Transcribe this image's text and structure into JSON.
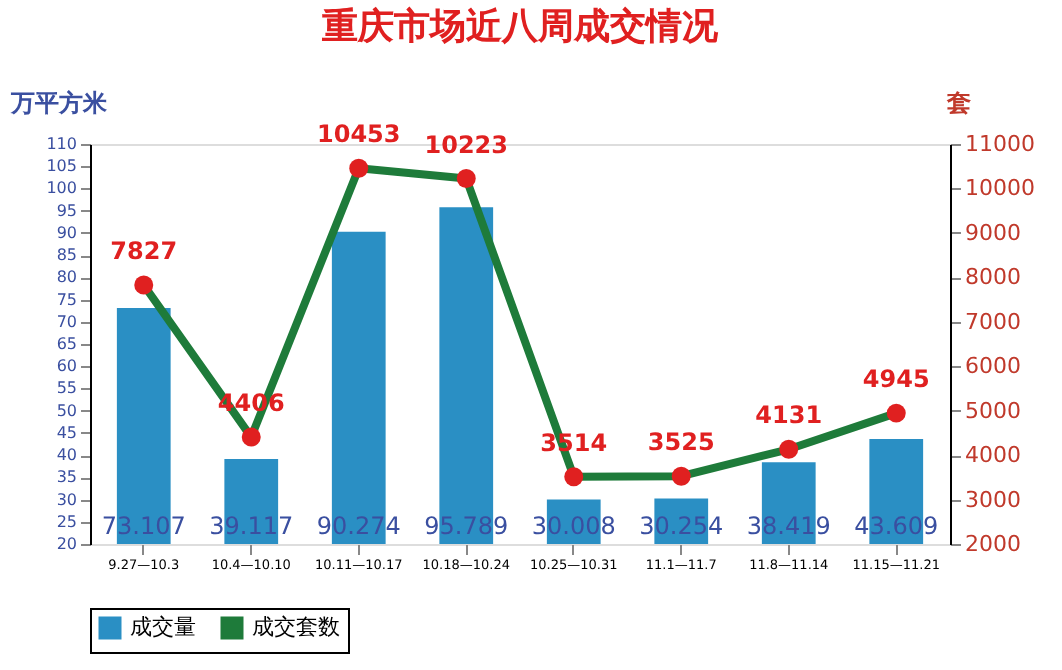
{
  "chart_data": {
    "type": "bar",
    "title": "重庆市场近八周成交情况",
    "ylabel": "万平方米",
    "y2label": "套",
    "categories": [
      "9.27—10.3",
      "10.4—10.10",
      "10.11—10.17",
      "10.18—10.24",
      "10.25—10.31",
      "11.1—11.7",
      "11.8—11.14",
      "11.15—11.21"
    ],
    "series": [
      {
        "name": "成交量",
        "color": "#2a8fc4",
        "values": [
          73.107,
          39.117,
          90.274,
          95.789,
          30.008,
          30.254,
          38.419,
          43.609
        ]
      },
      {
        "name": "成交套数",
        "type": "line",
        "axis": "y2",
        "color": "#1e7b3a",
        "values": [
          7827,
          4406,
          10453,
          10223,
          3514,
          3525,
          4131,
          4945
        ]
      }
    ],
    "ylim": [
      20,
      110
    ],
    "yticks": [
      20,
      25,
      30,
      35,
      40,
      45,
      50,
      55,
      60,
      65,
      70,
      75,
      80,
      85,
      90,
      95,
      100,
      105,
      110
    ],
    "y2lim": [
      2000,
      11000
    ],
    "y2ticks": [
      2000,
      3000,
      4000,
      5000,
      6000,
      7000,
      8000,
      9000,
      10000,
      11000
    ],
    "data_labels": true,
    "legend": "bottom",
    "marker": "circle",
    "grid": false
  }
}
